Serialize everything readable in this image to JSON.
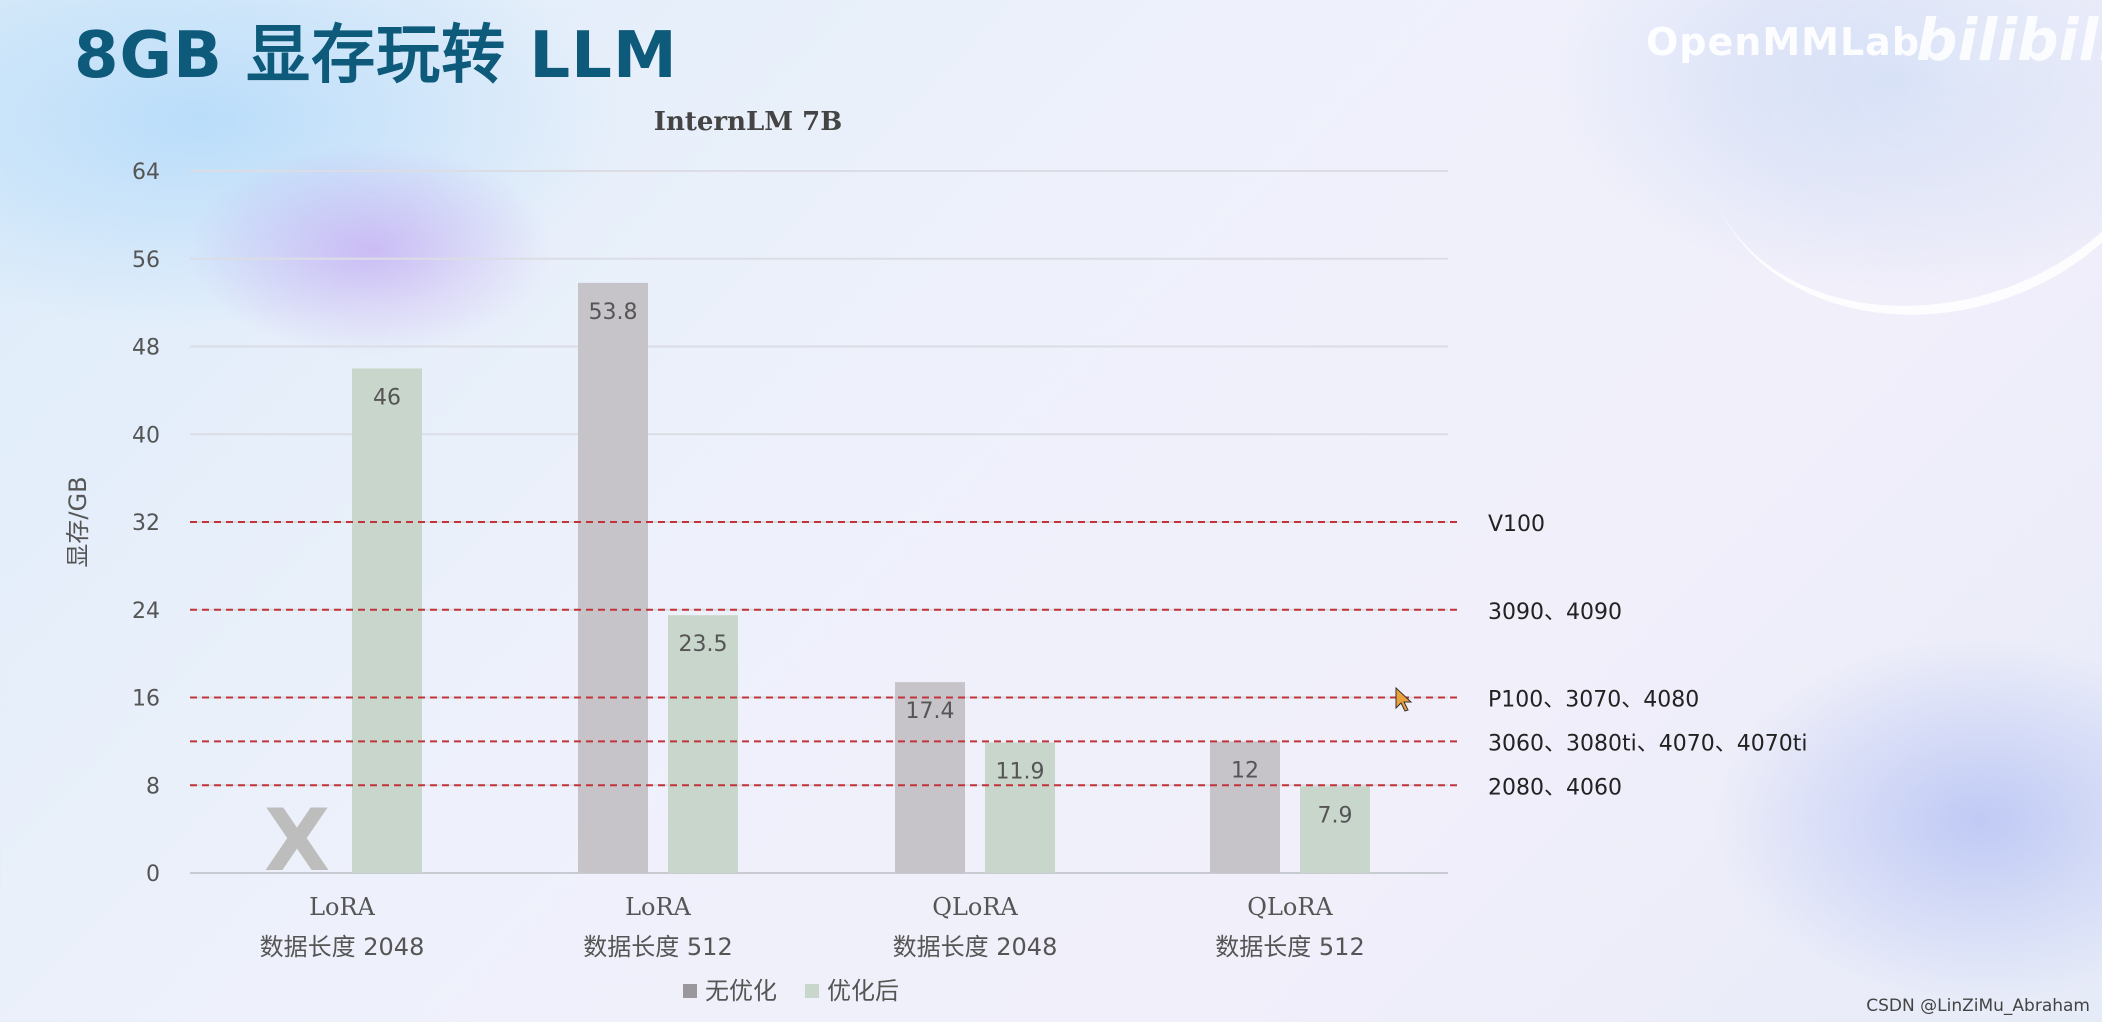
{
  "slide": {
    "title": "8GB 显存玩转 LLM",
    "brand": "OpenMMLab",
    "brand_logo": "bilibili",
    "watermark": "CSDN @LinZiMu_Abraham"
  },
  "chart_data": {
    "type": "bar",
    "title": "InternLM 7B",
    "ylabel": "显存/GB",
    "xlabel": "",
    "ylim": [
      0,
      64
    ],
    "yticks": [
      0,
      8,
      16,
      24,
      32,
      40,
      48,
      56,
      64
    ],
    "grid": true,
    "legend_position": "bottom",
    "categories": [
      {
        "line1": "LoRA",
        "line2": "数据长度 2048"
      },
      {
        "line1": "LoRA",
        "line2": "数据长度 512"
      },
      {
        "line1": "QLoRA",
        "line2": "数据长度 2048"
      },
      {
        "line1": "QLoRA",
        "line2": "数据长度 512"
      }
    ],
    "series": [
      {
        "name": "无优化",
        "color": "#c6c3c9",
        "values": [
          null,
          53.8,
          17.4,
          12
        ],
        "labels": [
          "",
          "53.8",
          "17.4",
          "12"
        ]
      },
      {
        "name": "优化后",
        "color": "#c9d6cc",
        "values": [
          46,
          23.5,
          11.9,
          7.9
        ],
        "labels": [
          "46",
          "23.5",
          "11.9",
          "7.9"
        ]
      }
    ],
    "missing_marker": {
      "category_index": 0,
      "series_index": 0,
      "symbol": "X",
      "color": "#bdbdbd"
    },
    "reference_lines": [
      {
        "value": 32,
        "label": "V100"
      },
      {
        "value": 24,
        "label": "3090、4090"
      },
      {
        "value": 16,
        "label": "P100、3070、4080"
      },
      {
        "value": 12,
        "label": "3060、3080ti、4070、4070ti"
      },
      {
        "value": 8,
        "label": "2080、4060"
      }
    ],
    "reference_line_color": "#c0343a"
  }
}
